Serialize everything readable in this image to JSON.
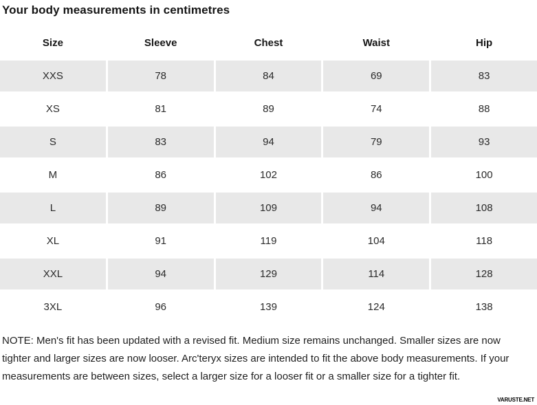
{
  "page_title": "Your body measurements in centimetres",
  "chart_data": {
    "type": "table",
    "title": "Your body measurements in centimetres",
    "columns": [
      "Size",
      "Sleeve",
      "Chest",
      "Waist",
      "Hip"
    ],
    "rows": [
      [
        "XXS",
        78,
        84,
        69,
        83
      ],
      [
        "XS",
        81,
        89,
        74,
        88
      ],
      [
        "S",
        83,
        94,
        79,
        93
      ],
      [
        "M",
        86,
        102,
        86,
        100
      ],
      [
        "L",
        89,
        109,
        94,
        108
      ],
      [
        "XL",
        91,
        119,
        104,
        118
      ],
      [
        "XXL",
        94,
        129,
        114,
        128
      ],
      [
        "3XL",
        96,
        139,
        124,
        138
      ]
    ],
    "units": "centimetres",
    "layout_hints": {
      "shaded_rows": "alternating starting with first data row",
      "grid": "off"
    }
  },
  "note": "NOTE: Men's fit has been updated with a revised fit. Medium size remains unchanged. Smaller sizes are now tighter and larger sizes are now looser. Arc'teryx sizes are intended to fit the above body measurements. If your measurements are between sizes, select a larger size for a looser fit or a smaller size for a tighter fit.",
  "watermark": "VARUSTE.NET",
  "colors": {
    "row_shaded": "#e8e8e8",
    "text": "#1f1f1f",
    "background": "#ffffff"
  }
}
